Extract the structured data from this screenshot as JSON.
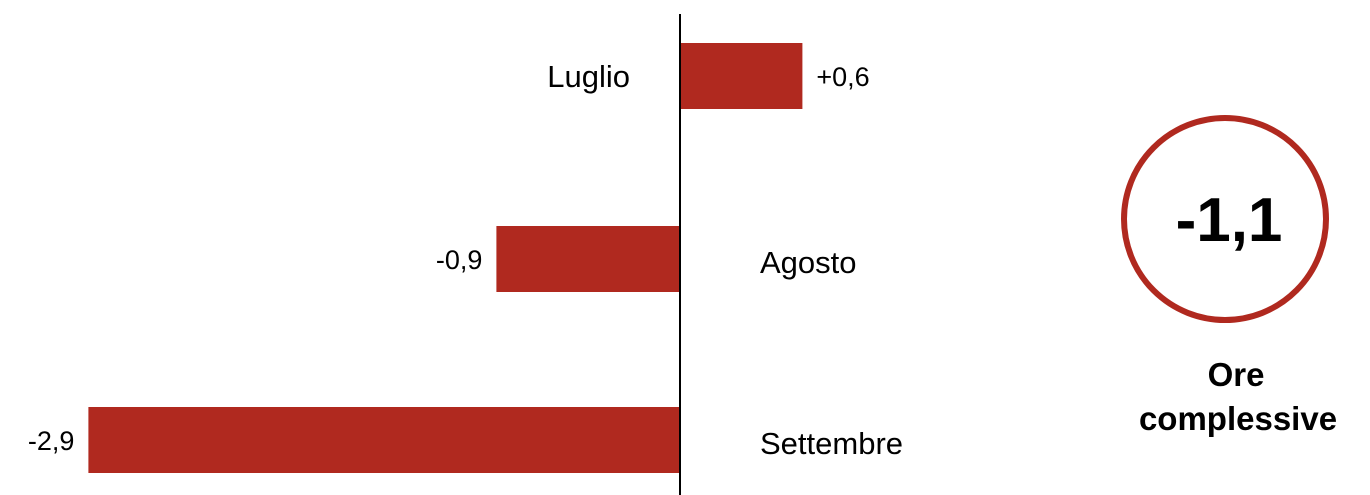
{
  "chart_data": {
    "type": "bar",
    "orientation": "horizontal",
    "categories": [
      "Luglio",
      "Agosto",
      "Settembre"
    ],
    "values": [
      0.6,
      -0.9,
      -2.9
    ],
    "value_labels": [
      "+0,6",
      "-0,9",
      "-2,9"
    ],
    "bar_color": "#B0291F",
    "axis_color": "#000000",
    "xlim": [
      -2.9,
      0.6
    ],
    "grid": false
  },
  "summary": {
    "value": "-1,1",
    "caption_line1": "Ore",
    "caption_line2": "complessive",
    "ring_color": "#B0291F"
  }
}
